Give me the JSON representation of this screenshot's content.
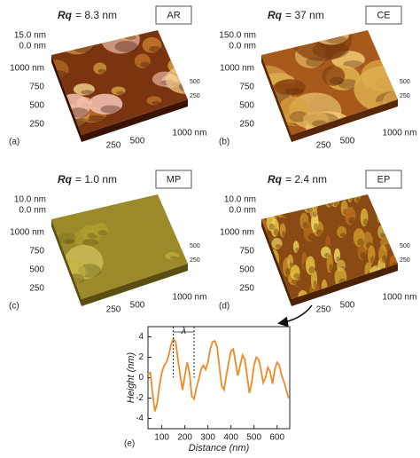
{
  "panels": [
    {
      "label": "(a)",
      "tag": "AR",
      "rq_symbol": "Rq",
      "rq_value": "= 8.3 nm",
      "z_top": "15.0 nm",
      "z_zero": "0.0 nm",
      "left_axis": [
        "1000 nm",
        "750",
        "500",
        "250"
      ],
      "bottom_axis": [
        "250",
        "500",
        "1000 nm"
      ],
      "side_axis": [
        "500",
        "250"
      ]
    },
    {
      "label": "(b)",
      "tag": "CE",
      "rq_symbol": "Rq",
      "rq_value": "= 37 nm",
      "z_top": "150.0 nm",
      "z_zero": "0.0 nm",
      "left_axis": [
        "1000 nm",
        "750",
        "500",
        "250"
      ],
      "bottom_axis": [
        "250",
        "500",
        "1000 nm"
      ],
      "side_axis": [
        "500",
        "250"
      ]
    },
    {
      "label": "(c)",
      "tag": "MP",
      "rq_symbol": "Rq",
      "rq_value": "= 1.0 nm",
      "z_top": "10.0 nm",
      "z_zero": "0.0 nm",
      "left_axis": [
        "1000 nm",
        "750",
        "500",
        "250"
      ],
      "bottom_axis": [
        "250",
        "500",
        "1000 nm"
      ],
      "side_axis": [
        "500",
        "250"
      ]
    },
    {
      "label": "(d)",
      "tag": "EP",
      "rq_symbol": "Rq",
      "rq_value": "= 2.4 nm",
      "z_top": "10.0 nm",
      "z_zero": "0.0 nm",
      "left_axis": [
        "1000 nm",
        "750",
        "500",
        "250"
      ],
      "bottom_axis": [
        "250",
        "500",
        "1000 nm"
      ],
      "side_axis": [
        "500",
        "250"
      ]
    }
  ],
  "chart_data": {
    "type": "line",
    "panel_label": "(e)",
    "xlabel": "Distance (nm)",
    "ylabel": "Height (nm)",
    "annotation": "λ",
    "annotation_span": [
      150,
      240
    ],
    "x": [
      40,
      50,
      60,
      70,
      80,
      90,
      100,
      110,
      120,
      130,
      140,
      150,
      160,
      170,
      180,
      190,
      200,
      210,
      220,
      230,
      240,
      250,
      260,
      270,
      280,
      290,
      300,
      310,
      320,
      330,
      340,
      350,
      360,
      370,
      380,
      390,
      400,
      410,
      420,
      430,
      440,
      450,
      460,
      470,
      480,
      490,
      500,
      510,
      520,
      530,
      540,
      550,
      560,
      570,
      580,
      590,
      600,
      610,
      620,
      630,
      640,
      650
    ],
    "series": [
      {
        "color": "#f08a24",
        "values": [
          0.3,
          0.5,
          -1.5,
          -3.3,
          -2.5,
          -0.8,
          0.5,
          1.2,
          1.5,
          2.2,
          3.2,
          3.8,
          3.5,
          1.8,
          0.2,
          -1.2,
          0.2,
          1.5,
          0.5,
          -1.8,
          -2.1,
          -1.0,
          -0.2,
          0.8,
          1.2,
          0.8,
          1.5,
          2.8,
          3.5,
          3.6,
          3.0,
          1.0,
          -0.8,
          -1.2,
          0.2,
          1.5,
          2.6,
          2.8,
          1.5,
          0.2,
          1.2,
          2.2,
          1.8,
          0.2,
          -1.5,
          -0.5,
          1.2,
          2.0,
          1.8,
          0.8,
          -0.5,
          0,
          1.0,
          0.6,
          -0.6,
          0.8,
          1.5,
          1.2,
          0.2,
          -0.4,
          -1.2,
          -2.0
        ]
      }
    ],
    "xlim": [
      40,
      655
    ],
    "ylim": [
      -5,
      5
    ],
    "xticks": [
      100,
      200,
      300,
      400,
      500,
      600
    ],
    "yticks": [
      -4,
      -2,
      0,
      2,
      4
    ]
  }
}
